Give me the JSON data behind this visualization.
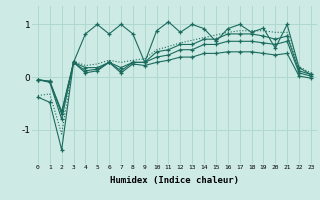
{
  "xlabel": "Humidex (Indice chaleur)",
  "bg_color": "#ceeae4",
  "line_color": "#1a6b5e",
  "grid_color": "#afd8d0",
  "ylim": [
    -1.65,
    1.35
  ],
  "xlim": [
    -0.5,
    23.5
  ],
  "yticks": [
    -1,
    0,
    1
  ],
  "x_main": [
    0,
    1,
    2,
    3,
    4,
    5,
    6,
    7,
    8,
    9,
    10,
    11,
    12,
    13,
    14,
    15,
    16,
    17,
    18,
    19,
    20,
    21,
    22,
    23
  ],
  "y_main": [
    -0.05,
    -0.08,
    -0.65,
    0.28,
    0.82,
    1.0,
    0.82,
    1.0,
    0.82,
    0.28,
    0.88,
    1.05,
    0.85,
    1.0,
    0.92,
    0.68,
    0.92,
    1.0,
    0.85,
    0.93,
    0.55,
    1.0,
    0.18,
    0.05
  ],
  "y_mid1": [
    -0.05,
    -0.08,
    -0.7,
    0.28,
    0.18,
    0.18,
    0.28,
    0.18,
    0.28,
    0.28,
    0.48,
    0.52,
    0.62,
    0.62,
    0.72,
    0.72,
    0.82,
    0.82,
    0.82,
    0.78,
    0.72,
    0.78,
    0.12,
    0.05
  ],
  "y_mid2": [
    -0.05,
    -0.1,
    -0.8,
    0.28,
    0.12,
    0.15,
    0.28,
    0.12,
    0.28,
    0.28,
    0.38,
    0.42,
    0.52,
    0.52,
    0.62,
    0.62,
    0.68,
    0.68,
    0.68,
    0.65,
    0.62,
    0.68,
    0.08,
    0.02
  ],
  "y_bot": [
    -0.38,
    -0.48,
    -1.38,
    0.28,
    0.08,
    0.12,
    0.28,
    0.08,
    0.25,
    0.22,
    0.28,
    0.32,
    0.38,
    0.38,
    0.45,
    0.45,
    0.48,
    0.48,
    0.48,
    0.45,
    0.42,
    0.45,
    0.02,
    -0.02
  ],
  "y_dotted": [
    -0.35,
    -0.32,
    -1.08,
    0.3,
    0.22,
    0.25,
    0.32,
    0.28,
    0.32,
    0.35,
    0.52,
    0.58,
    0.65,
    0.7,
    0.75,
    0.8,
    0.85,
    0.88,
    0.88,
    0.88,
    0.85,
    0.85,
    0.2,
    0.08
  ]
}
